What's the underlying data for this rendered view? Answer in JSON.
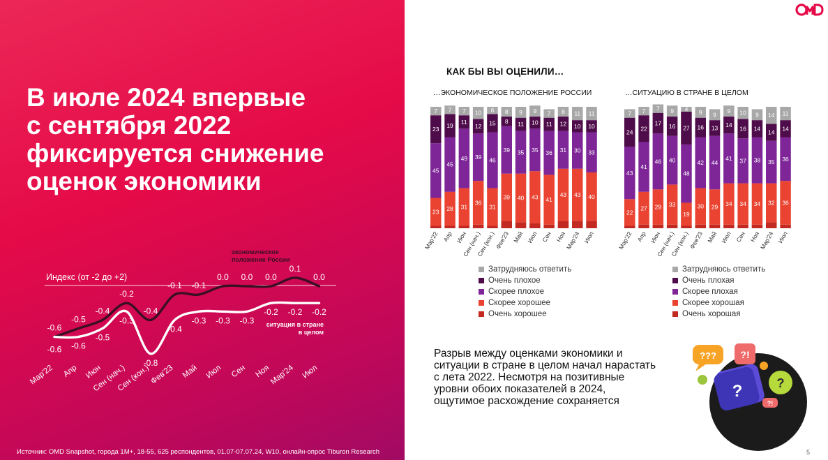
{
  "headline": {
    "line1": "В июле 2024 впервые",
    "line2": "с сентября 2022",
    "line3": "фиксируется снижение",
    "line4": "оценок экономики"
  },
  "brand": {
    "logo_text": "OMD",
    "accent": "#e50a48"
  },
  "source": "Источник: OMD Snapshot, города 1M+, 18-55, 625 респондентов, 01.07-07.07.24, W10, онлайн-опрос Tiburon Research",
  "page_number": "5",
  "main_question": "КАК БЫ ВЫ ОЦЕНИЛИ…",
  "conclusion": "Разрыв между оценками экономики и ситуации в стране в целом начал нарастать с лета 2022. Несмотря на позитивные уровни обоих показателей в 2024, ощутимое расхождение сохраняется",
  "chart_data": [
    {
      "type": "line",
      "title": "Индекс (от -2 до +2)",
      "categories": [
        "Мар'22",
        "Апр",
        "Июн",
        "Сен (нач.)",
        "Сен (кон.)",
        "Фев'23",
        "Май",
        "Июл",
        "Сен",
        "Ноя",
        "Мар'24",
        "Июл"
      ],
      "ylim": [
        -2,
        2
      ],
      "series": [
        {
          "name": "экономическое положение России",
          "color": "#3a0f24",
          "values": [
            -0.6,
            -0.5,
            -0.4,
            -0.2,
            -0.4,
            -0.1,
            -0.1,
            0.0,
            0.0,
            0.0,
            0.1,
            0.0
          ]
        },
        {
          "name": "ситуация в стране в целом",
          "color": "#ffffff",
          "values": [
            -0.6,
            -0.6,
            -0.5,
            -0.3,
            -0.8,
            -0.4,
            -0.3,
            -0.3,
            -0.3,
            -0.2,
            -0.2,
            -0.2
          ]
        }
      ]
    },
    {
      "type": "bar",
      "stacked": true,
      "title": "…ЭКОНОМИЧЕСКОЕ ПОЛОЖЕНИЕ РОССИИ",
      "categories": [
        "Мар'22",
        "Апр",
        "Июн",
        "Сен (нач.)",
        "Сен (кон.)",
        "Фев'23",
        "Май",
        "Июл",
        "Сен",
        "Ноя",
        "Мар'24",
        "Июл"
      ],
      "series": [
        {
          "name": "Очень хорошее",
          "color": "#c22a21",
          "values": [
            2,
            2,
            2,
            3,
            2,
            6,
            5,
            4,
            3,
            6,
            6,
            6
          ]
        },
        {
          "name": "Скорее хорошее",
          "color": "#ea4331",
          "values": [
            23,
            28,
            31,
            36,
            31,
            39,
            40,
            43,
            41,
            43,
            43,
            40
          ]
        },
        {
          "name": "Скорее плохое",
          "color": "#7e2598",
          "values": [
            45,
            45,
            49,
            39,
            46,
            39,
            35,
            35,
            36,
            31,
            30,
            33
          ]
        },
        {
          "name": "Очень плохое",
          "color": "#4f0c4a",
          "values": [
            23,
            19,
            11,
            12,
            15,
            8,
            11,
            10,
            11,
            12,
            10,
            10
          ]
        },
        {
          "name": "Затрудняюсь ответить",
          "color": "#a8a8a8",
          "values": [
            7,
            7,
            7,
            10,
            6,
            8,
            9,
            9,
            7,
            8,
            11,
            11
          ]
        }
      ],
      "legend": [
        "Затрудняюсь ответить",
        "Очень плохое",
        "Скорее плохое",
        "Скорее хорошее",
        "Очень хорошее"
      ]
    },
    {
      "type": "bar",
      "stacked": true,
      "title": "…СИТУАЦИЮ В СТРАНЕ В ЦЕЛОМ",
      "categories": [
        "Мар'22",
        "Апр",
        "Июн",
        "Сен (нач.)",
        "Сен (кон.)",
        "Фев'23",
        "Май",
        "Июл",
        "Сен",
        "Ноя",
        "Мар'24",
        "Июл"
      ],
      "series": [
        {
          "name": "Очень хорошая",
          "color": "#c22a21",
          "values": [
            2,
            3,
            3,
            3,
            2,
            3,
            3,
            3,
            3,
            3,
            5,
            3
          ]
        },
        {
          "name": "Скорее хорошая",
          "color": "#ea4331",
          "values": [
            22,
            27,
            29,
            33,
            19,
            30,
            29,
            34,
            34,
            34,
            32,
            36
          ]
        },
        {
          "name": "Скорее плохая",
          "color": "#7e2598",
          "values": [
            43,
            41,
            46,
            40,
            48,
            42,
            44,
            41,
            37,
            38,
            35,
            36
          ]
        },
        {
          "name": "Очень плохая",
          "color": "#4f0c4a",
          "values": [
            24,
            22,
            17,
            16,
            27,
            16,
            13,
            14,
            16,
            14,
            14,
            14
          ]
        },
        {
          "name": "Затрудняюсь ответить",
          "color": "#a8a8a8",
          "values": [
            7,
            7,
            7,
            9,
            4,
            9,
            9,
            9,
            10,
            9,
            14,
            11
          ]
        }
      ],
      "legend": [
        "Затрудняюсь ответить",
        "Очень плохая",
        "Скорее плохая",
        "Скорее хорошая",
        "Очень хорошая"
      ]
    }
  ]
}
